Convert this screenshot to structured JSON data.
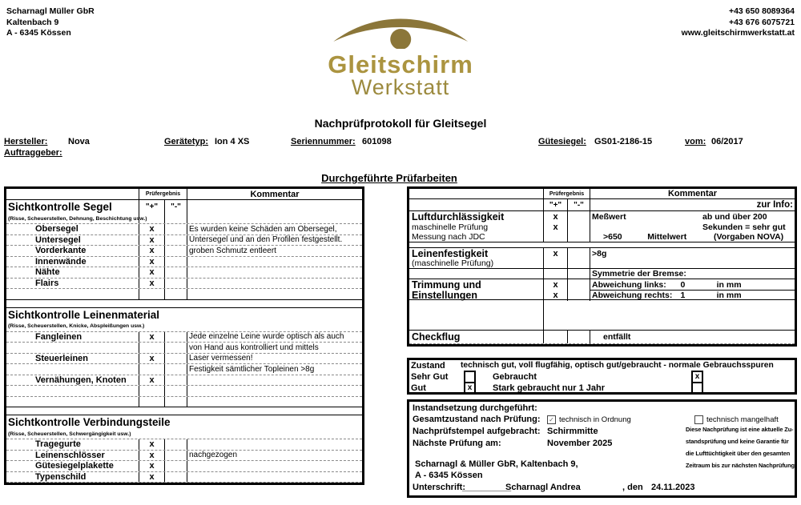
{
  "header": {
    "address": [
      "Scharnagl Müller GbR",
      "Kaltenbach 9",
      "A - 6345 Kössen"
    ],
    "contact": [
      "+43 650 8089364",
      "+43 676 6075721",
      "www.gleitschirmwerkstatt.at"
    ],
    "logo": {
      "line1": "Gleitschirm",
      "line2": "Werkstatt",
      "colors": {
        "arc": "#8b7639",
        "dot": "#8b7639",
        "title": "#ab9440",
        "subtitle": "#9c8a3e"
      }
    }
  },
  "title": "Nachprüfprotokoll für Gleitsegel",
  "info": {
    "hersteller_label": "Hersteller:",
    "hersteller": "Nova",
    "auftraggeber_label": "Auftraggeber:",
    "auftraggeber": "",
    "geraetetyp_label": "Gerätetyp:",
    "geraetetyp": "Ion 4 XS",
    "seriennummer_label": "Seriennummer:",
    "seriennummer": "601098",
    "guetesiegel_label": "Gütesiegel:",
    "guetesiegel": "GS01-2186-15",
    "vom_label": "vom:",
    "vom": "06/2017"
  },
  "section_title": "Durchgeführte Prüfarbeiten",
  "left_table": {
    "header": {
      "pruefergebnis": "Prüfergebnis",
      "kommentar": "Kommentar",
      "plus": "\"+\"",
      "minus": "\"-\""
    },
    "rows": [
      {
        "t": "head"
      },
      {
        "t": "sec",
        "label": "Sichtkontrolle Segel"
      },
      {
        "t": "note",
        "text": "(Risse, Scheuerstellen, Dehnung, Beschichtung usw.)"
      },
      {
        "t": "item",
        "label": "Obersegel",
        "p": "x",
        "m": "",
        "c": "Es wurden keine Schäden am Obersegel,"
      },
      {
        "t": "item",
        "label": "Untersegel",
        "p": "x",
        "m": "",
        "c": "Untersegel und an den Profilen festgestellt."
      },
      {
        "t": "item",
        "label": "Vorderkante",
        "p": "x",
        "m": "",
        "c": "groben Schmutz entleert"
      },
      {
        "t": "item",
        "label": "Innenwände",
        "p": "x",
        "m": "",
        "c": ""
      },
      {
        "t": "item",
        "label": "Nähte",
        "p": "x",
        "m": "",
        "c": ""
      },
      {
        "t": "item",
        "label": "Flairs",
        "p": "x",
        "m": "",
        "c": ""
      },
      {
        "t": "item",
        "label": "",
        "p": "",
        "m": "",
        "c": "",
        "solid": true
      },
      {
        "t": "gap"
      },
      {
        "t": "secfull",
        "label": "Sichtkontrolle Leinenmaterial"
      },
      {
        "t": "notefull",
        "text": "(Risse, Scheuerstellen, Knicke, Abspleißungen usw.)"
      },
      {
        "t": "item",
        "label": "Fangleinen",
        "p": "x",
        "m": "",
        "c": "Jede einzelne Leine wurde optisch als auch"
      },
      {
        "t": "item",
        "label": "",
        "p": "",
        "m": "",
        "c": "von Hand aus kontrolliert und mittels"
      },
      {
        "t": "item",
        "label": "Steuerleinen",
        "p": "x",
        "m": "",
        "c": "Laser vermessen!"
      },
      {
        "t": "item",
        "label": "",
        "p": "",
        "m": "",
        "c": "Festigkeit sämtlicher Topleinen >8g"
      },
      {
        "t": "item",
        "label": "Vernähungen, Knoten",
        "p": "x",
        "m": "",
        "c": ""
      },
      {
        "t": "item",
        "label": "",
        "p": "",
        "m": "",
        "c": ""
      },
      {
        "t": "item",
        "label": "",
        "p": "",
        "m": "",
        "c": "",
        "solid": true
      },
      {
        "t": "gap"
      },
      {
        "t": "secfull",
        "label": "Sichtkontrolle Verbindungsteile"
      },
      {
        "t": "notefull",
        "text": "(Risse, Scheuerstellen, Schwergängigkeit usw.)"
      },
      {
        "t": "item",
        "label": "Tragegurte",
        "p": "x",
        "m": "",
        "c": ""
      },
      {
        "t": "item",
        "label": "Leinenschlösser",
        "p": "x",
        "m": "",
        "c": "nachgezogen"
      },
      {
        "t": "item",
        "label": "Gütesiegelplakette",
        "p": "x",
        "m": "",
        "c": ""
      },
      {
        "t": "item",
        "label": "Typenschild",
        "p": "x",
        "m": "",
        "c": ""
      }
    ]
  },
  "right_table": {
    "header": {
      "pruefergebnis": "Prüfergebnis",
      "kommentar": "Kommentar",
      "plus": "\"+\"",
      "minus": "\"-\"",
      "zur_info": "zur Info:"
    },
    "rows": [
      {
        "t": "head"
      },
      {
        "t": "head2"
      },
      {
        "t": "item",
        "label": "Luftdurchlässigkeit",
        "lb": true,
        "p": "x",
        "m": "",
        "c": [
          {
            "t": "Meßwert",
            "w": "55%"
          },
          {
            "t": "ab und über 200"
          }
        ],
        "nb": true
      },
      {
        "t": "item",
        "label": "maschinelle Prüfung",
        "p": "x",
        "m": "",
        "c": [
          {
            "t": "",
            "w": "55%"
          },
          {
            "t": "Sekunden = sehr gut"
          }
        ],
        "nb": true
      },
      {
        "t": "item",
        "label": "Messung nach JDC",
        "p": "",
        "m": "",
        "c": [
          {
            "t": ">650",
            "w": "22%",
            "ind": true
          },
          {
            "t": "Mittelwert",
            "w": "33%"
          },
          {
            "t": "(Vorgaben NOVA)"
          }
        ],
        "solid": true
      },
      {
        "t": "gap"
      },
      {
        "t": "item",
        "label": "Leinenfestigkeit",
        "lb": true,
        "p": "x",
        "m": "",
        "c": [
          {
            "t": ">8g"
          }
        ],
        "nb": true
      },
      {
        "t": "item",
        "label": "(maschinelle Prüfung)",
        "p": "",
        "m": "",
        "c": [],
        "solid": true
      },
      {
        "t": "item",
        "label": "",
        "p": "",
        "m": "",
        "c": [
          {
            "t": "Symmetrie der Bremse:"
          }
        ],
        "solid": true
      },
      {
        "t": "item",
        "label": "Trimmung und",
        "lb": true,
        "p": "x",
        "m": "",
        "c": [
          {
            "t": "Abweichung links:",
            "w": "44%"
          },
          {
            "t": "0",
            "w": "18%"
          },
          {
            "t": "in mm"
          }
        ],
        "nb": true,
        "cb": true
      },
      {
        "t": "item",
        "label": "Einstellungen",
        "lb": true,
        "p": "x",
        "m": "",
        "c": [
          {
            "t": "Abweichung rechts:",
            "w": "44%"
          },
          {
            "t": "1",
            "w": "18%"
          },
          {
            "t": "in mm"
          }
        ],
        "solid": true
      },
      {
        "t": "bigempty"
      },
      {
        "t": "item",
        "label": "Checkflug",
        "lb": true,
        "p": "",
        "m": "",
        "c": [
          {
            "t": "entfällt",
            "ind": true
          }
        ],
        "h": 17
      }
    ]
  },
  "zustand": {
    "title": "Zustand",
    "desc": "technisch gut, voll flugfähig, optisch gut/gebraucht - normale Gebrauchsspuren",
    "mark": "x",
    "options": [
      {
        "label1": "Sehr Gut",
        "checked1": false,
        "label2": "Gebraucht",
        "checked2": true
      },
      {
        "label1": "Gut",
        "checked1": true,
        "label2": "Stark gebraucht nur 1 Jahr",
        "checked2": false
      }
    ]
  },
  "footer_box": {
    "line1": "Instandsetzung durchgeführt:",
    "line2_label": "Gesamtzustand nach Prüfung:",
    "cb1_label": "technisch in Ordnung",
    "cb1_checked": true,
    "check_glyph": "✓",
    "cb2_label": "technisch mangelhaft",
    "cb2_checked": false,
    "line3_label": "Nachprüfstempel aufgebracht:",
    "line3_value": "Schirmmitte",
    "line4_label": "Nächste Prüfung am:",
    "line4_value": "November 2025",
    "address1": "Scharnagl & Müller GbR, Kaltenbach 9,",
    "address2": "A - 6345 Kössen",
    "sign_label": "Unterschrift:",
    "sign_blank": "__________",
    "sign_name": "Scharnagl Andrea",
    "sign_den": ", den",
    "sign_date": "24.11.2023",
    "note_lines": [
      "Diese Nachprüfung ist eine aktuelle Zu-",
      "standsprüfung und keine Garantie für",
      "die Lufttüchtigkeit über den gesamten",
      "Zeitraum bis zur nächsten Nachprüfung"
    ]
  }
}
